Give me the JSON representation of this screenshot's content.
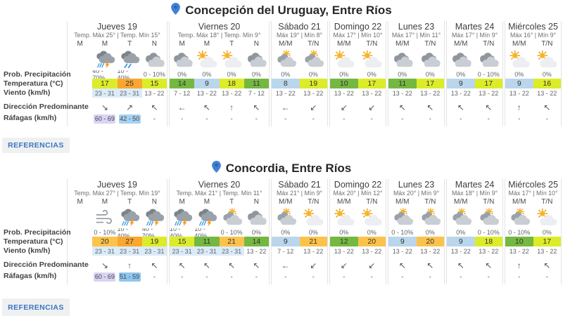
{
  "referencias_label": "REFERENCIAS",
  "row_labels": {
    "precip": "Prob. Precipitación",
    "temp": "Temperatura (°C)",
    "wind": "Viento (km/h)",
    "dir": "Dirección Predominante",
    "gust": "Ráfagas (km/h)"
  },
  "colors": {
    "pin_blue": "#4081d5",
    "temp": {
      "blue": "#b9d6ec",
      "green": "#74b842",
      "chartreuse": "#dcec28",
      "light_orange": "#fbc34c",
      "orange": "#faa62f"
    },
    "wind_highlight": "#dcebf8",
    "gust": {
      "lavender": "#d8d4f4",
      "blue": "#a5d2f3",
      "blue_dark": "#8fc6ef"
    }
  },
  "cities": [
    {
      "name": "Concepción del Uruguay, Entre Ríos",
      "days": [
        {
          "label": "Jueves 19",
          "range": "Temp. Máx 25° | Temp. Mín 15°",
          "periods": [
            "M",
            "M",
            "T",
            "N"
          ],
          "cells": [
            {
              "icon": "",
              "prob": "",
              "temp": "",
              "temp_color": "",
              "wind": "",
              "wind_hl": false,
              "dir": "",
              "gust": "",
              "gust_color": ""
            },
            {
              "icon": "rain-lightning",
              "prob": "40 - 70%",
              "temp": "17",
              "temp_color": "chartreuse",
              "wind": "23 - 31",
              "wind_hl": true,
              "dir": "↘",
              "gust": "60 - 69",
              "gust_color": "lavender"
            },
            {
              "icon": "rain",
              "prob": "10 - 40%",
              "temp": "25",
              "temp_color": "orange",
              "wind": "23 - 31",
              "wind_hl": true,
              "dir": "↗",
              "gust": "42 - 50",
              "gust_color": "blue"
            },
            {
              "icon": "cloudy",
              "prob": "0 - 10%",
              "temp": "15",
              "temp_color": "chartreuse",
              "wind": "13 - 22",
              "wind_hl": false,
              "dir": "↖",
              "gust": "-",
              "gust_color": ""
            }
          ]
        },
        {
          "label": "Viernes 20",
          "range": "Temp. Máx 18° | Temp. Mín 9°",
          "periods": [
            "M",
            "M",
            "T",
            "N"
          ],
          "cells": [
            {
              "icon": "cloudy",
              "prob": "0%",
              "temp": "14",
              "temp_color": "green",
              "wind": "7 - 12",
              "wind_hl": false,
              "dir": "←",
              "gust": "-",
              "gust_color": ""
            },
            {
              "icon": "partly-sunny",
              "prob": "0%",
              "temp": "9",
              "temp_color": "blue",
              "wind": "13 - 22",
              "wind_hl": false,
              "dir": "↖",
              "gust": "-",
              "gust_color": ""
            },
            {
              "icon": "partly-sunny",
              "prob": "0%",
              "temp": "18",
              "temp_color": "chartreuse",
              "wind": "13 - 22",
              "wind_hl": false,
              "dir": "↑",
              "gust": "-",
              "gust_color": ""
            },
            {
              "icon": "cloudy",
              "prob": "0%",
              "temp": "11",
              "temp_color": "green",
              "wind": "7 - 12",
              "wind_hl": false,
              "dir": "↖",
              "gust": "-",
              "gust_color": ""
            }
          ]
        },
        {
          "label": "Sábado 21",
          "range": "Máx 19° | Mín 8°",
          "periods": [
            "M/M",
            "T/N"
          ],
          "cells": [
            {
              "icon": "mostly-cloudy-sun",
              "prob": "0%",
              "temp": "8",
              "temp_color": "blue",
              "wind": "13 - 22",
              "wind_hl": false,
              "dir": "←",
              "gust": "-",
              "gust_color": ""
            },
            {
              "icon": "mostly-cloudy-sun",
              "prob": "0%",
              "temp": "19",
              "temp_color": "chartreuse",
              "wind": "13 - 22",
              "wind_hl": false,
              "dir": "↙",
              "gust": "-",
              "gust_color": ""
            }
          ]
        },
        {
          "label": "Domingo 22",
          "range": "Máx 17° | Mín 10°",
          "periods": [
            "M/M",
            "T/N"
          ],
          "cells": [
            {
              "icon": "partly-sunny",
              "prob": "0%",
              "temp": "10",
              "temp_color": "green",
              "wind": "13 - 22",
              "wind_hl": false,
              "dir": "↙",
              "gust": "-",
              "gust_color": ""
            },
            {
              "icon": "partly-sunny",
              "prob": "0%",
              "temp": "17",
              "temp_color": "chartreuse",
              "wind": "13 - 22",
              "wind_hl": false,
              "dir": "↙",
              "gust": "-",
              "gust_color": ""
            }
          ]
        },
        {
          "label": "Lunes 23",
          "range": "Máx 17° | Mín 11°",
          "periods": [
            "M/M",
            "T/N"
          ],
          "cells": [
            {
              "icon": "cloudy",
              "prob": "0%",
              "temp": "11",
              "temp_color": "green",
              "wind": "13 - 22",
              "wind_hl": false,
              "dir": "↖",
              "gust": "-",
              "gust_color": ""
            },
            {
              "icon": "cloudy",
              "prob": "0%",
              "temp": "17",
              "temp_color": "chartreuse",
              "wind": "13 - 22",
              "wind_hl": false,
              "dir": "↖",
              "gust": "-",
              "gust_color": ""
            }
          ]
        },
        {
          "label": "Martes 24",
          "range": "Máx 17° | Mín 9°",
          "periods": [
            "M/M",
            "T/N"
          ],
          "cells": [
            {
              "icon": "cloudy",
              "prob": "0%",
              "temp": "9",
              "temp_color": "blue",
              "wind": "13 - 22",
              "wind_hl": false,
              "dir": "↖",
              "gust": "-",
              "gust_color": ""
            },
            {
              "icon": "cloudy",
              "prob": "0 - 10%",
              "temp": "17",
              "temp_color": "chartreuse",
              "wind": "13 - 22",
              "wind_hl": false,
              "dir": "↖",
              "gust": "-",
              "gust_color": ""
            }
          ]
        },
        {
          "label": "Miércoles 25",
          "range": "Máx 16° | Mín 9°",
          "periods": [
            "M/M",
            "T/N"
          ],
          "cells": [
            {
              "icon": "partly-sunny",
              "prob": "0%",
              "temp": "9",
              "temp_color": "blue",
              "wind": "13 - 22",
              "wind_hl": false,
              "dir": "↑",
              "gust": "-",
              "gust_color": ""
            },
            {
              "icon": "partly-sunny",
              "prob": "0%",
              "temp": "16",
              "temp_color": "chartreuse",
              "wind": "13 - 22",
              "wind_hl": false,
              "dir": "↖",
              "gust": "-",
              "gust_color": ""
            }
          ]
        }
      ]
    },
    {
      "name": "Concordia, Entre Ríos",
      "days": [
        {
          "label": "Jueves 19",
          "range": "Temp. Máx 27° | Temp. Mín 19°",
          "periods": [
            "M",
            "M",
            "T",
            "N"
          ],
          "cells": [
            {
              "icon": "",
              "prob": "",
              "temp": "",
              "temp_color": "",
              "wind": "",
              "wind_hl": false,
              "dir": "",
              "gust": "",
              "gust_color": ""
            },
            {
              "icon": "wind",
              "prob": "0 - 10%",
              "temp": "20",
              "temp_color": "light_orange",
              "wind": "23 - 31",
              "wind_hl": true,
              "dir": "↘",
              "gust": "60 - 69",
              "gust_color": "lavender"
            },
            {
              "icon": "rain-lightning",
              "prob": "10 - 40%",
              "temp": "27",
              "temp_color": "orange",
              "wind": "23 - 31",
              "wind_hl": true,
              "dir": "↑",
              "gust": "51 - 59",
              "gust_color": "blue_dark"
            },
            {
              "icon": "rain-lightning",
              "prob": "40 - 70%",
              "temp": "19",
              "temp_color": "chartreuse",
              "wind": "23 - 31",
              "wind_hl": true,
              "dir": "↖",
              "gust": "-",
              "gust_color": ""
            }
          ]
        },
        {
          "label": "Viernes 20",
          "range": "Temp. Máx 21° | Temp. Mín 11°",
          "periods": [
            "M",
            "M",
            "T",
            "N"
          ],
          "cells": [
            {
              "icon": "rain-lightning",
              "prob": "10 - 40%",
              "temp": "15",
              "temp_color": "chartreuse",
              "wind": "23 - 31",
              "wind_hl": true,
              "dir": "↖",
              "gust": "-",
              "gust_color": ""
            },
            {
              "icon": "rain-lightning",
              "prob": "10 - 40%",
              "temp": "11",
              "temp_color": "green",
              "wind": "23 - 31",
              "wind_hl": true,
              "dir": "↖",
              "gust": "-",
              "gust_color": ""
            },
            {
              "icon": "mostly-cloudy-sun",
              "prob": "0 - 10%",
              "temp": "21",
              "temp_color": "light_orange",
              "wind": "23 - 31",
              "wind_hl": true,
              "dir": "↖",
              "gust": "-",
              "gust_color": ""
            },
            {
              "icon": "cloudy",
              "prob": "0%",
              "temp": "14",
              "temp_color": "green",
              "wind": "13 - 22",
              "wind_hl": false,
              "dir": "↖",
              "gust": "-",
              "gust_color": ""
            }
          ]
        },
        {
          "label": "Sábado 21",
          "range": "Máx 21° | Mín 9°",
          "periods": [
            "M/M",
            "T/N"
          ],
          "cells": [
            {
              "icon": "mostly-cloudy-sun",
              "prob": "0%",
              "temp": "9",
              "temp_color": "blue",
              "wind": "7 - 12",
              "wind_hl": false,
              "dir": "←",
              "gust": "-",
              "gust_color": ""
            },
            {
              "icon": "partly-sunny",
              "prob": "0%",
              "temp": "21",
              "temp_color": "light_orange",
              "wind": "13 - 22",
              "wind_hl": false,
              "dir": "↙",
              "gust": "-",
              "gust_color": ""
            }
          ]
        },
        {
          "label": "Domingo 22",
          "range": "Máx 20° | Mín 12°",
          "periods": [
            "M/M",
            "T/N"
          ],
          "cells": [
            {
              "icon": "partly-sunny",
              "prob": "0%",
              "temp": "12",
              "temp_color": "green",
              "wind": "13 - 22",
              "wind_hl": false,
              "dir": "↙",
              "gust": "-",
              "gust_color": ""
            },
            {
              "icon": "partly-sunny",
              "prob": "0%",
              "temp": "20",
              "temp_color": "light_orange",
              "wind": "13 - 22",
              "wind_hl": false,
              "dir": "↙",
              "gust": "-",
              "gust_color": ""
            }
          ]
        },
        {
          "label": "Lunes 23",
          "range": "Máx 20° | Mín 9°",
          "periods": [
            "M/M",
            "T/N"
          ],
          "cells": [
            {
              "icon": "mostly-cloudy-sun",
              "prob": "0 - 10%",
              "temp": "9",
              "temp_color": "blue",
              "wind": "13 - 22",
              "wind_hl": false,
              "dir": "↖",
              "gust": "-",
              "gust_color": ""
            },
            {
              "icon": "mostly-cloudy-sun",
              "prob": "0%",
              "temp": "20",
              "temp_color": "light_orange",
              "wind": "13 - 22",
              "wind_hl": false,
              "dir": "↖",
              "gust": "-",
              "gust_color": ""
            }
          ]
        },
        {
          "label": "Martes 24",
          "range": "Máx 18° | Mín 9°",
          "periods": [
            "M/M",
            "T/N"
          ],
          "cells": [
            {
              "icon": "mostly-cloudy-sun",
              "prob": "0%",
              "temp": "9",
              "temp_color": "blue",
              "wind": "13 - 22",
              "wind_hl": false,
              "dir": "↖",
              "gust": "-",
              "gust_color": ""
            },
            {
              "icon": "mostly-cloudy-sun",
              "prob": "0 - 10%",
              "temp": "18",
              "temp_color": "chartreuse",
              "wind": "13 - 22",
              "wind_hl": false,
              "dir": "↖",
              "gust": "-",
              "gust_color": ""
            }
          ]
        },
        {
          "label": "Miércoles 25",
          "range": "Máx 17° | Mín 10°",
          "periods": [
            "M/M",
            "T/N"
          ],
          "cells": [
            {
              "icon": "mostly-cloudy-sun",
              "prob": "0 - 10%",
              "temp": "10",
              "temp_color": "green",
              "wind": "13 - 22",
              "wind_hl": false,
              "dir": "↑",
              "gust": "-",
              "gust_color": ""
            },
            {
              "icon": "partly-sunny",
              "prob": "0%",
              "temp": "17",
              "temp_color": "chartreuse",
              "wind": "13 - 22",
              "wind_hl": false,
              "dir": "↖",
              "gust": "-",
              "gust_color": ""
            }
          ]
        }
      ]
    }
  ]
}
